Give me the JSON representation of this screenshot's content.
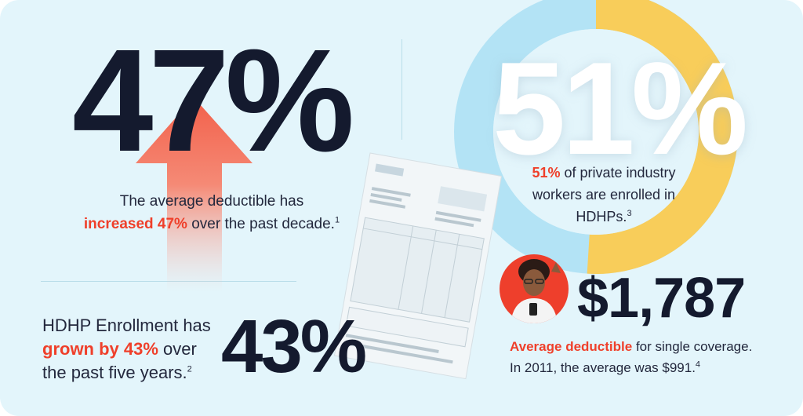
{
  "stat_deductible_increase": {
    "value": "47%",
    "desc_before": "The average deductible has",
    "desc_highlight": "increased 47%",
    "desc_after": "over the past decade.",
    "footnote": "1"
  },
  "stat_hdhp_workers": {
    "value": "51%",
    "desc_highlight": "51%",
    "desc_line1_after": "of private industry",
    "desc_line2": "workers are enrolled in",
    "desc_line3": "HDHPs.",
    "footnote": "3",
    "ring_share": 0.51
  },
  "stat_hdhp_growth": {
    "value": "43%",
    "desc_line1": "HDHP Enrollment has",
    "desc_highlight": "grown by 43%",
    "desc_after": "over",
    "desc_line3": "the past five years.",
    "footnote": "2"
  },
  "stat_avg_deductible": {
    "value": "$1,787",
    "desc_highlight": "Average deductible",
    "desc_line1_after": "for single coverage.",
    "desc_line2": "In 2011, the average was $991.",
    "footnote": "4"
  },
  "colors": {
    "background": "#e3f5fb",
    "highlight": "#ef3f2a",
    "ring_blue": "#b3e3f5",
    "ring_yellow": "#f8cd5a",
    "avatar_bg": "#ee3f2c"
  }
}
